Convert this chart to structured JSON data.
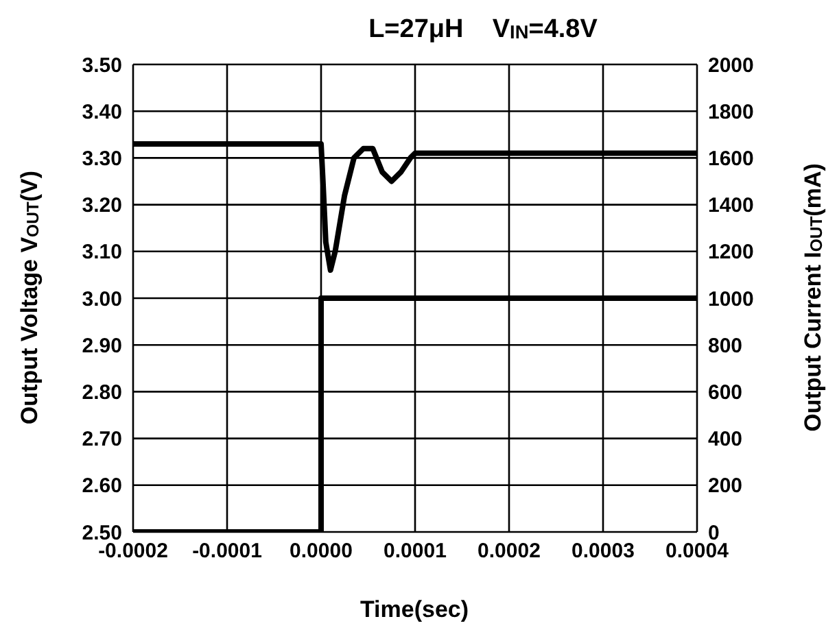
{
  "chart_data": {
    "type": "line",
    "title": "L=27μH    V$_{IN}$=4.8V",
    "xlabel": "Time(sec)",
    "ylabel": "Output Voltage V$_{OUT}$(V)",
    "y2label": "Output Current I$_{OUT}$(mA)",
    "series": [
      {
        "color": "#000000",
        "x": [
          -0.0002,
          0,
          2e-06,
          5e-06,
          1e-05,
          1.5e-05,
          2.5e-05,
          3.5e-05,
          4.5e-05,
          5.5e-05,
          6.5e-05,
          7.5e-05,
          8.5e-05,
          9.5e-05,
          0.0001,
          0.0004
        ],
        "values": [
          3.33,
          3.33,
          3.25,
          3.12,
          3.06,
          3.1,
          3.22,
          3.3,
          3.32,
          3.32,
          3.27,
          3.25,
          3.27,
          3.3,
          3.31,
          3.31
        ]
      },
      {
        "color": "#000000",
        "axis": "y2",
        "x": [
          -0.0002,
          0,
          0,
          0.0004
        ],
        "values": [
          0,
          0,
          1000,
          1000
        ]
      }
    ],
    "xlim": [
      -0.0002,
      0.0004
    ],
    "xticks": [
      {
        "value": -0.0002,
        "label": "-0.0002"
      },
      {
        "value": -0.0001,
        "label": "-0.0001"
      },
      {
        "value": 0,
        "label": "0.0000"
      },
      {
        "value": 0.0001,
        "label": "0.0001"
      },
      {
        "value": 0.0002,
        "label": "0.0002"
      },
      {
        "value": 0.0003,
        "label": "0.0003"
      },
      {
        "value": 0.0004,
        "label": "0.0004"
      }
    ],
    "ylim": [
      2.5,
      3.5
    ],
    "yticks": [
      {
        "value": 2.5,
        "label": "2.50"
      },
      {
        "value": 2.6,
        "label": "2.60"
      },
      {
        "value": 2.7,
        "label": "2.70"
      },
      {
        "value": 2.8,
        "label": "2.80"
      },
      {
        "value": 2.9,
        "label": "2.90"
      },
      {
        "value": 3,
        "label": "3.00"
      },
      {
        "value": 3.1,
        "label": "3.10"
      },
      {
        "value": 3.2,
        "label": "3.20"
      },
      {
        "value": 3.3,
        "label": "3.30"
      },
      {
        "value": 3.4,
        "label": "3.40"
      },
      {
        "value": 3.5,
        "label": "3.50"
      }
    ],
    "y2lim": [
      0,
      2000
    ],
    "y2ticks": [
      0,
      200,
      400,
      600,
      800,
      1000,
      1200,
      1400,
      1600,
      1800,
      2000
    ],
    "grid": true,
    "marker": "none",
    "line_style": "solid"
  }
}
